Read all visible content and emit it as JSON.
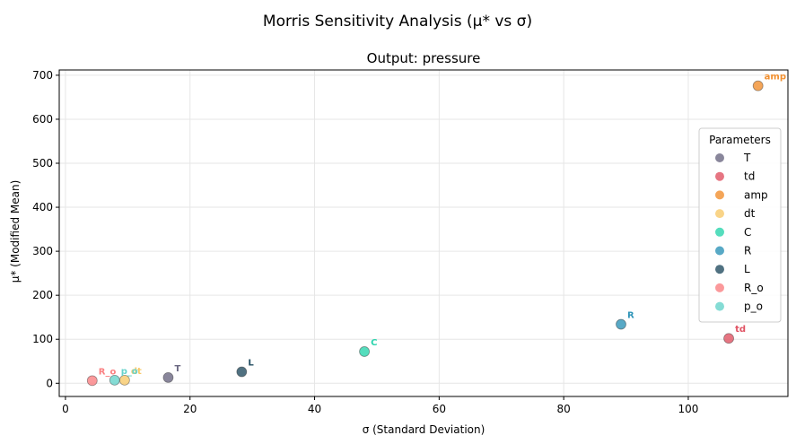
{
  "chart_data": {
    "type": "scatter",
    "suptitle": "Morris Sensitivity Analysis (μ* vs σ)",
    "title": "Output: pressure",
    "xlabel": "σ (Standard Deviation)",
    "ylabel": "μ* (Modified Mean)",
    "xlim": [
      -1,
      116
    ],
    "ylim": [
      -30,
      712
    ],
    "xticks": [
      0,
      20,
      40,
      60,
      80,
      100
    ],
    "yticks": [
      0,
      100,
      200,
      300,
      400,
      500,
      600,
      700
    ],
    "grid": true,
    "legend": {
      "title": "Parameters",
      "placement": "right"
    },
    "points": [
      {
        "name": "T",
        "label": "T",
        "x": 16.5,
        "y": 13,
        "color": "#6b6882"
      },
      {
        "name": "td",
        "label": "td",
        "x": 106.5,
        "y": 102,
        "color": "#e05263"
      },
      {
        "name": "amp",
        "label": "amp",
        "x": 111.2,
        "y": 676,
        "color": "#f18f2e"
      },
      {
        "name": "dt",
        "label": "dt",
        "x": 9.5,
        "y": 7,
        "color": "#f8c96a"
      },
      {
        "name": "C",
        "label": "C",
        "x": 48.0,
        "y": 72,
        "color": "#2bd4ad"
      },
      {
        "name": "R",
        "label": "R",
        "x": 89.2,
        "y": 134,
        "color": "#2e94b8"
      },
      {
        "name": "L",
        "label": "L",
        "x": 28.3,
        "y": 26,
        "color": "#244e62"
      },
      {
        "name": "R_o",
        "label": "R_o",
        "x": 4.3,
        "y": 6,
        "color": "#fa8082"
      },
      {
        "name": "p_o",
        "label": "p_o",
        "x": 7.9,
        "y": 7,
        "color": "#66d3cb"
      }
    ]
  }
}
